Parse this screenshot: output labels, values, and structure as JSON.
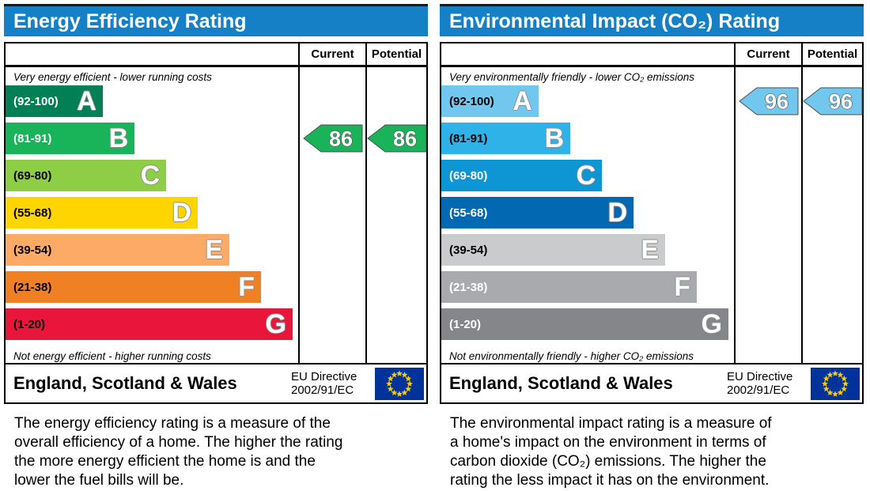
{
  "chart_data": [
    {
      "type": "bar",
      "title": "Energy Efficiency Rating",
      "categories": [
        "A (92-100)",
        "B (81-91)",
        "C (69-80)",
        "D (55-68)",
        "E (39-54)",
        "F (21-38)",
        "G (1-20)"
      ],
      "series": [
        {
          "name": "Current",
          "values": [
            86
          ],
          "band": "B"
        },
        {
          "name": "Potential",
          "values": [
            86
          ],
          "band": "B"
        }
      ],
      "xlabel": "",
      "ylabel": "",
      "ylim": [
        1,
        100
      ],
      "legend_position": "top-right-columns"
    },
    {
      "type": "bar",
      "title": "Environmental Impact (CO₂) Rating",
      "categories": [
        "A (92-100)",
        "B (81-91)",
        "C (69-80)",
        "D (55-68)",
        "E (39-54)",
        "F (21-38)",
        "G (1-20)"
      ],
      "series": [
        {
          "name": "Current",
          "values": [
            96
          ],
          "band": "A"
        },
        {
          "name": "Potential",
          "values": [
            96
          ],
          "band": "A"
        }
      ],
      "xlabel": "",
      "ylabel": "",
      "ylim": [
        1,
        100
      ],
      "legend_position": "top-right-columns"
    }
  ],
  "panels": [
    {
      "title": "Energy Efficiency Rating",
      "header_color": "#1580c6",
      "columns": {
        "current": "Current",
        "potential": "Potential"
      },
      "top_note": "Very energy efficient - lower running costs",
      "bottom_note": "Not energy efficient - higher running costs",
      "bands": [
        {
          "letter": "A",
          "range": "(92-100)",
          "color": "#008054",
          "width_pct": 33.2,
          "label_color": "#ffffff"
        },
        {
          "letter": "B",
          "range": "(81-91)",
          "color": "#19b459",
          "width_pct": 44.1,
          "label_color": "#ffffff"
        },
        {
          "letter": "C",
          "range": "(69-80)",
          "color": "#8dce46",
          "width_pct": 54.9,
          "label_color": "#000000"
        },
        {
          "letter": "D",
          "range": "(55-68)",
          "color": "#ffd500",
          "width_pct": 65.7,
          "label_color": "#000000"
        },
        {
          "letter": "E",
          "range": "(39-54)",
          "color": "#fcaa65",
          "width_pct": 76.5,
          "label_color": "#000000"
        },
        {
          "letter": "F",
          "range": "(21-38)",
          "color": "#ef8023",
          "width_pct": 87.3,
          "label_color": "#000000"
        },
        {
          "letter": "G",
          "range": "(1-20)",
          "color": "#e9153b",
          "width_pct": 98.1,
          "label_color": "#000000"
        }
      ],
      "current": {
        "value": "86",
        "band_index": 1,
        "color": "#19b459"
      },
      "potential": {
        "value": "86",
        "band_index": 1,
        "color": "#19b459"
      },
      "footer": {
        "region": "England, Scotland & Wales",
        "directive": "EU Directive\n2002/91/EC"
      },
      "flag": {
        "icon": "eu-flag-icon",
        "bg": "#003399",
        "star": "#ffcc00"
      },
      "description": "The energy efficiency rating is a measure of the\noverall efficiency of a home. The higher the rating\nthe more energy efficient the home is and the\nlower the fuel bills will be."
    },
    {
      "title": "Environmental Impact (CO₂) Rating",
      "header_color": "#1580c6",
      "columns": {
        "current": "Current",
        "potential": "Potential"
      },
      "top_note": "Very environmentally friendly - lower CO₂ emissions",
      "bottom_note": "Not environmentally friendly - higher CO₂ emissions",
      "bands": [
        {
          "letter": "A",
          "range": "(92-100)",
          "color": "#72c7ee",
          "width_pct": 33.2,
          "label_color": "#000000"
        },
        {
          "letter": "B",
          "range": "(81-91)",
          "color": "#2eb2e8",
          "width_pct": 44.1,
          "label_color": "#000000"
        },
        {
          "letter": "C",
          "range": "(69-80)",
          "color": "#0d96d3",
          "width_pct": 54.9,
          "label_color": "#ffffff"
        },
        {
          "letter": "D",
          "range": "(55-68)",
          "color": "#0268b2",
          "width_pct": 65.7,
          "label_color": "#ffffff"
        },
        {
          "letter": "E",
          "range": "(39-54)",
          "color": "#cacbcd",
          "width_pct": 76.5,
          "label_color": "#000000"
        },
        {
          "letter": "F",
          "range": "(21-38)",
          "color": "#a9aaae",
          "width_pct": 87.3,
          "label_color": "#ffffff"
        },
        {
          "letter": "G",
          "range": "(1-20)",
          "color": "#85868a",
          "width_pct": 98.1,
          "label_color": "#ffffff"
        }
      ],
      "current": {
        "value": "96",
        "band_index": 0,
        "color": "#72c7ee"
      },
      "potential": {
        "value": "96",
        "band_index": 0,
        "color": "#72c7ee"
      },
      "footer": {
        "region": "England, Scotland & Wales",
        "directive": "EU Directive\n2002/91/EC"
      },
      "flag": {
        "icon": "eu-flag-icon",
        "bg": "#003399",
        "star": "#ffcc00"
      },
      "description": "The environmental impact rating is a measure of\na home's impact on the environment in terms of\ncarbon dioxide (CO₂) emissions. The higher the\nrating the less impact it has on the environment."
    }
  ]
}
